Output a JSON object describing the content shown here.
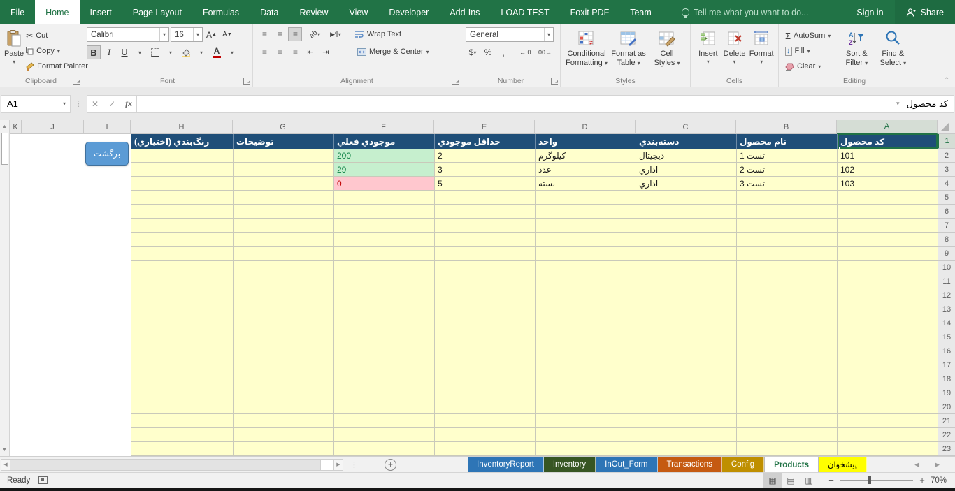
{
  "ribbon_tabs": [
    {
      "label": "File",
      "active": false
    },
    {
      "label": "Home",
      "active": true
    },
    {
      "label": "Insert",
      "active": false
    },
    {
      "label": "Page Layout",
      "active": false
    },
    {
      "label": "Formulas",
      "active": false
    },
    {
      "label": "Data",
      "active": false
    },
    {
      "label": "Review",
      "active": false
    },
    {
      "label": "View",
      "active": false
    },
    {
      "label": "Developer",
      "active": false
    },
    {
      "label": "Add-Ins",
      "active": false
    },
    {
      "label": "LOAD TEST",
      "active": false
    },
    {
      "label": "Foxit PDF",
      "active": false
    },
    {
      "label": "Team",
      "active": false
    }
  ],
  "tell_me": "Tell me what you want to do...",
  "account": {
    "sign_in": "Sign in",
    "share": "Share"
  },
  "ribbon": {
    "clipboard": {
      "label": "Clipboard",
      "paste": "Paste",
      "cut": "Cut",
      "copy": "Copy",
      "format_painter": "Format Painter"
    },
    "font": {
      "label": "Font",
      "family": "Calibri",
      "size": "16"
    },
    "alignment": {
      "label": "Alignment",
      "wrap": "Wrap Text",
      "merge": "Merge & Center"
    },
    "number": {
      "label": "Number",
      "format": "General"
    },
    "styles": {
      "label": "Styles",
      "cf1": "Conditional",
      "cf2": "Formatting",
      "ft1": "Format as",
      "ft2": "Table",
      "cs1": "Cell",
      "cs2": "Styles"
    },
    "cells": {
      "label": "Cells",
      "insert": "Insert",
      "delete": "Delete",
      "format": "Format"
    },
    "editing": {
      "label": "Editing",
      "autosum": "AutoSum",
      "fill": "Fill",
      "clear": "Clear",
      "sort1": "Sort &",
      "sort2": "Filter",
      "find1": "Find &",
      "find2": "Select"
    }
  },
  "formula_bar": {
    "name_box": "A1",
    "value": "کد محصول"
  },
  "sheet": {
    "column_letters_display": [
      "K",
      "J",
      "I",
      "H",
      "G",
      "F",
      "E",
      "D",
      "C",
      "B",
      "A"
    ],
    "headers": {
      "A": "کد محصول",
      "B": "نام محصول",
      "C": "دسته‌بندي",
      "D": "واحد",
      "E": "حداقل موجودي",
      "F": "موجودي فعلي",
      "G": "توضيحات",
      "H": "رنگ‌بندي (اختياري)"
    },
    "rows": [
      {
        "n": "2",
        "A": "101",
        "B": "تست 1",
        "C": "ديجيتال",
        "D": "کيلوگرم",
        "E": "2",
        "F": "200",
        "G": "",
        "H": "",
        "stock": "ok"
      },
      {
        "n": "3",
        "A": "102",
        "B": "تست 2",
        "C": "اداري",
        "D": "عدد",
        "E": "3",
        "F": "29",
        "G": "",
        "H": "",
        "stock": "ok"
      },
      {
        "n": "4",
        "A": "103",
        "B": "تست 3",
        "C": "اداري",
        "D": "بسته",
        "E": "5",
        "F": "0",
        "G": "",
        "H": "",
        "stock": "zero"
      }
    ],
    "visible_row_count": 23,
    "selected_cell": "A1",
    "back_button": "برگشت",
    "colors": {
      "header_fill": "#1F4E78",
      "header_text": "#FFFFFF",
      "cell_fill": "#FFFFCC",
      "ok_fill": "#C6EFCE",
      "ok_text": "#0B8043",
      "zero_fill": "#FFC7CE",
      "zero_text": "#C00000",
      "selection": "#217346",
      "back_button_fill": "#5B9BD5"
    }
  },
  "sheet_tabs": [
    {
      "label": "InventoryReport",
      "bg": "#2E75B6",
      "fg": "#FFFFFF",
      "active": false
    },
    {
      "label": "Inventory",
      "bg": "#375623",
      "fg": "#FFFFFF",
      "active": false
    },
    {
      "label": "InOut_Form",
      "bg": "#2E75B6",
      "fg": "#FFFFFF",
      "active": false
    },
    {
      "label": "Transactions",
      "bg": "#C55A11",
      "fg": "#FFFFFF",
      "active": false
    },
    {
      "label": "Config",
      "bg": "#BF8F00",
      "fg": "#FFFFFF",
      "active": false
    },
    {
      "label": "Products",
      "bg": "#FFFFFF",
      "fg": "#217346",
      "active": true
    },
    {
      "label": "پیشخوان",
      "bg": "#FFFF00",
      "fg": "#000000",
      "active": false
    }
  ],
  "status_bar": {
    "mode": "Ready",
    "zoom": "70%"
  }
}
